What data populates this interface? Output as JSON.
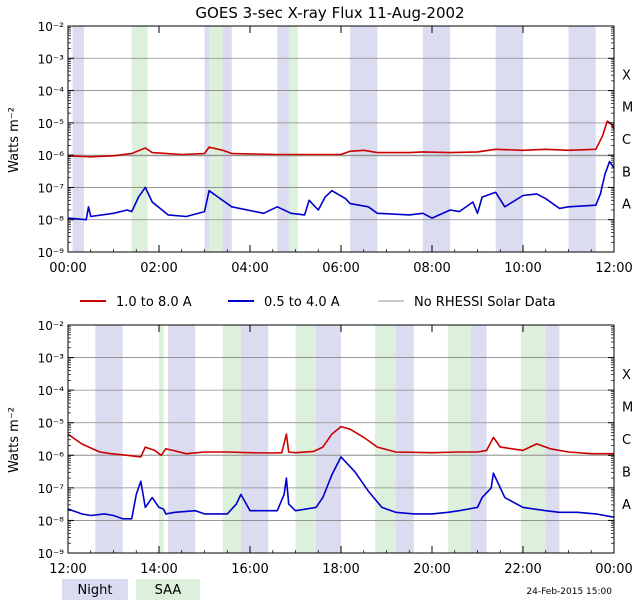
{
  "chart_data": [
    {
      "type": "line",
      "title": "GOES 3-sec X-ray Flux   11-Aug-2002",
      "ylabel": "Watts m⁻²",
      "x_unit": "hours",
      "xlim": [
        0,
        12
      ],
      "ylim_log10": [
        -9,
        -2
      ],
      "x_ticks": [
        {
          "value": 0,
          "label": "00:00"
        },
        {
          "value": 2,
          "label": "02:00"
        },
        {
          "value": 4,
          "label": "04:00"
        },
        {
          "value": 6,
          "label": "06:00"
        },
        {
          "value": 8,
          "label": "08:00"
        },
        {
          "value": 10,
          "label": "10:00"
        },
        {
          "value": 12,
          "label": "12:00"
        }
      ],
      "y_ticks": [
        {
          "exp": -2,
          "label": "10⁻²"
        },
        {
          "exp": -3,
          "label": "10⁻³"
        },
        {
          "exp": -4,
          "label": "10⁻⁴"
        },
        {
          "exp": -5,
          "label": "10⁻⁵"
        },
        {
          "exp": -6,
          "label": "10⁻⁶"
        },
        {
          "exp": -7,
          "label": "10⁻⁷"
        },
        {
          "exp": -8,
          "label": "10⁻⁸"
        },
        {
          "exp": -9,
          "label": "10⁻⁹"
        }
      ],
      "flare_classes": [
        {
          "label": "X",
          "exp": -3.5
        },
        {
          "label": "M",
          "exp": -4.5
        },
        {
          "label": "C",
          "exp": -5.5
        },
        {
          "label": "B",
          "exp": -6.5
        },
        {
          "label": "A",
          "exp": -7.5
        }
      ],
      "night_bands": [
        [
          0.1,
          0.35
        ],
        [
          3.0,
          3.6
        ],
        [
          4.6,
          4.9
        ],
        [
          6.2,
          6.8
        ],
        [
          7.8,
          8.4
        ],
        [
          9.4,
          10.0
        ],
        [
          11.0,
          11.6
        ]
      ],
      "saa_bands": [
        [
          1.4,
          1.75
        ],
        [
          3.1,
          3.4
        ],
        [
          4.85,
          5.05
        ]
      ],
      "series": [
        {
          "name": "1.0 to 8.0 A",
          "color": "#cc0000",
          "points": [
            [
              0,
              -6.02
            ],
            [
              0.5,
              -6.05
            ],
            [
              1.0,
              -6.02
            ],
            [
              1.4,
              -5.95
            ],
            [
              1.7,
              -5.78
            ],
            [
              1.85,
              -5.92
            ],
            [
              2.5,
              -5.98
            ],
            [
              3.0,
              -5.95
            ],
            [
              3.1,
              -5.75
            ],
            [
              3.4,
              -5.85
            ],
            [
              3.6,
              -5.95
            ],
            [
              4.6,
              -5.98
            ],
            [
              5.05,
              -5.98
            ],
            [
              6.0,
              -5.98
            ],
            [
              6.2,
              -5.88
            ],
            [
              6.5,
              -5.85
            ],
            [
              6.8,
              -5.92
            ],
            [
              7.5,
              -5.92
            ],
            [
              7.8,
              -5.9
            ],
            [
              8.4,
              -5.92
            ],
            [
              9.0,
              -5.9
            ],
            [
              9.4,
              -5.82
            ],
            [
              10.0,
              -5.85
            ],
            [
              10.5,
              -5.82
            ],
            [
              11.0,
              -5.85
            ],
            [
              11.6,
              -5.82
            ],
            [
              11.75,
              -5.4
            ],
            [
              11.85,
              -4.95
            ],
            [
              11.95,
              -5.05
            ],
            [
              12.0,
              -5.2
            ]
          ]
        },
        {
          "name": "0.5 to 4.0 A",
          "color": "#0000cc",
          "points": [
            [
              0,
              -7.95
            ],
            [
              0.4,
              -8.0
            ],
            [
              0.45,
              -7.6
            ],
            [
              0.5,
              -7.9
            ],
            [
              1.0,
              -7.8
            ],
            [
              1.3,
              -7.7
            ],
            [
              1.4,
              -7.75
            ],
            [
              1.55,
              -7.3
            ],
            [
              1.7,
              -7.0
            ],
            [
              1.85,
              -7.45
            ],
            [
              2.2,
              -7.85
            ],
            [
              2.6,
              -7.9
            ],
            [
              3.0,
              -7.75
            ],
            [
              3.1,
              -7.1
            ],
            [
              3.3,
              -7.3
            ],
            [
              3.6,
              -7.6
            ],
            [
              4.3,
              -7.8
            ],
            [
              4.6,
              -7.6
            ],
            [
              4.9,
              -7.8
            ],
            [
              5.2,
              -7.85
            ],
            [
              5.3,
              -7.4
            ],
            [
              5.5,
              -7.7
            ],
            [
              5.65,
              -7.3
            ],
            [
              5.8,
              -7.1
            ],
            [
              6.1,
              -7.35
            ],
            [
              6.2,
              -7.5
            ],
            [
              6.6,
              -7.6
            ],
            [
              6.8,
              -7.8
            ],
            [
              7.5,
              -7.85
            ],
            [
              7.8,
              -7.8
            ],
            [
              8.0,
              -7.95
            ],
            [
              8.4,
              -7.7
            ],
            [
              8.6,
              -7.75
            ],
            [
              8.9,
              -7.45
            ],
            [
              9.0,
              -7.8
            ],
            [
              9.1,
              -7.3
            ],
            [
              9.4,
              -7.15
            ],
            [
              9.6,
              -7.6
            ],
            [
              10.0,
              -7.25
            ],
            [
              10.3,
              -7.2
            ],
            [
              10.5,
              -7.35
            ],
            [
              10.8,
              -7.65
            ],
            [
              11.0,
              -7.6
            ],
            [
              11.6,
              -7.55
            ],
            [
              11.7,
              -7.2
            ],
            [
              11.8,
              -6.6
            ],
            [
              11.9,
              -6.2
            ],
            [
              12.0,
              -6.4
            ]
          ]
        },
        {
          "name": "No RHESSI Solar Data",
          "color": "#999999",
          "points": [
            [
              0,
              -6.02
            ],
            [
              12,
              -6.02
            ]
          ]
        }
      ]
    },
    {
      "type": "line",
      "ylabel": "Watts m⁻²",
      "x_unit": "hours",
      "xlim": [
        12,
        24
      ],
      "ylim_log10": [
        -9,
        -2
      ],
      "x_ticks": [
        {
          "value": 12,
          "label": "12:00"
        },
        {
          "value": 14,
          "label": "14:00"
        },
        {
          "value": 16,
          "label": "16:00"
        },
        {
          "value": 18,
          "label": "18:00"
        },
        {
          "value": 20,
          "label": "20:00"
        },
        {
          "value": 22,
          "label": "22:00"
        },
        {
          "value": 24,
          "label": "00:00"
        }
      ],
      "y_ticks": [
        {
          "exp": -2,
          "label": "10⁻²"
        },
        {
          "exp": -3,
          "label": "10⁻³"
        },
        {
          "exp": -4,
          "label": "10⁻⁴"
        },
        {
          "exp": -5,
          "label": "10⁻⁵"
        },
        {
          "exp": -6,
          "label": "10⁻⁶"
        },
        {
          "exp": -7,
          "label": "10⁻⁷"
        },
        {
          "exp": -8,
          "label": "10⁻⁸"
        },
        {
          "exp": -9,
          "label": "10⁻⁹"
        }
      ],
      "flare_classes": [
        {
          "label": "X",
          "exp": -3.5
        },
        {
          "label": "M",
          "exp": -4.5
        },
        {
          "label": "C",
          "exp": -5.5
        },
        {
          "label": "B",
          "exp": -6.5
        },
        {
          "label": "A",
          "exp": -7.5
        }
      ],
      "night_bands": [
        [
          12.6,
          13.2
        ],
        [
          14.2,
          14.8
        ],
        [
          15.8,
          16.4
        ],
        [
          17.4,
          18.0
        ],
        [
          19.0,
          19.6
        ],
        [
          20.6,
          21.2
        ],
        [
          22.2,
          22.8
        ]
      ],
      "saa_bands": [
        [
          14.0,
          14.1
        ],
        [
          15.4,
          15.8
        ],
        [
          17.0,
          17.45
        ],
        [
          18.75,
          19.2
        ],
        [
          20.35,
          20.85
        ],
        [
          21.95,
          22.5
        ]
      ],
      "series": [
        {
          "name": "1.0 to 8.0 A",
          "color": "#cc0000",
          "points": [
            [
              12,
              -5.35
            ],
            [
              12.3,
              -5.65
            ],
            [
              12.7,
              -5.9
            ],
            [
              12.95,
              -5.95
            ],
            [
              13.3,
              -6.0
            ],
            [
              13.6,
              -6.05
            ],
            [
              13.7,
              -5.75
            ],
            [
              13.9,
              -5.85
            ],
            [
              14.05,
              -6.0
            ],
            [
              14.15,
              -5.8
            ],
            [
              14.3,
              -5.85
            ],
            [
              14.6,
              -5.95
            ],
            [
              15.0,
              -5.9
            ],
            [
              15.5,
              -5.9
            ],
            [
              16.0,
              -5.92
            ],
            [
              16.5,
              -5.93
            ],
            [
              16.7,
              -5.92
            ],
            [
              16.8,
              -5.35
            ],
            [
              16.85,
              -5.9
            ],
            [
              17.0,
              -5.92
            ],
            [
              17.4,
              -5.88
            ],
            [
              17.6,
              -5.75
            ],
            [
              17.8,
              -5.35
            ],
            [
              18.0,
              -5.12
            ],
            [
              18.2,
              -5.2
            ],
            [
              18.5,
              -5.45
            ],
            [
              18.8,
              -5.75
            ],
            [
              19.2,
              -5.9
            ],
            [
              20.0,
              -5.92
            ],
            [
              20.6,
              -5.9
            ],
            [
              21.0,
              -5.9
            ],
            [
              21.2,
              -5.85
            ],
            [
              21.35,
              -5.45
            ],
            [
              21.5,
              -5.75
            ],
            [
              22.0,
              -5.85
            ],
            [
              22.3,
              -5.65
            ],
            [
              22.6,
              -5.8
            ],
            [
              23.0,
              -5.9
            ],
            [
              23.5,
              -5.95
            ],
            [
              24.0,
              -5.95
            ]
          ]
        },
        {
          "name": "0.5 to 4.0 A",
          "color": "#0000cc",
          "points": [
            [
              12,
              -7.65
            ],
            [
              12.3,
              -7.8
            ],
            [
              12.5,
              -7.85
            ],
            [
              12.8,
              -7.8
            ],
            [
              13.0,
              -7.85
            ],
            [
              13.2,
              -7.95
            ],
            [
              13.4,
              -7.95
            ],
            [
              13.5,
              -7.2
            ],
            [
              13.6,
              -6.8
            ],
            [
              13.7,
              -7.6
            ],
            [
              13.85,
              -7.3
            ],
            [
              14.0,
              -7.6
            ],
            [
              14.1,
              -7.65
            ],
            [
              14.15,
              -7.8
            ],
            [
              14.35,
              -7.75
            ],
            [
              14.8,
              -7.7
            ],
            [
              15.0,
              -7.8
            ],
            [
              15.5,
              -7.8
            ],
            [
              15.7,
              -7.5
            ],
            [
              15.8,
              -7.2
            ],
            [
              16.0,
              -7.7
            ],
            [
              16.3,
              -7.7
            ],
            [
              16.6,
              -7.7
            ],
            [
              16.75,
              -7.2
            ],
            [
              16.8,
              -6.7
            ],
            [
              16.85,
              -7.5
            ],
            [
              17.0,
              -7.7
            ],
            [
              17.45,
              -7.6
            ],
            [
              17.6,
              -7.3
            ],
            [
              17.8,
              -6.6
            ],
            [
              18.0,
              -6.05
            ],
            [
              18.3,
              -6.5
            ],
            [
              18.6,
              -7.1
            ],
            [
              18.9,
              -7.6
            ],
            [
              19.2,
              -7.75
            ],
            [
              19.6,
              -7.8
            ],
            [
              20.0,
              -7.8
            ],
            [
              20.35,
              -7.75
            ],
            [
              20.6,
              -7.7
            ],
            [
              21.0,
              -7.6
            ],
            [
              21.1,
              -7.3
            ],
            [
              21.3,
              -7.0
            ],
            [
              21.35,
              -6.55
            ],
            [
              21.5,
              -7.0
            ],
            [
              21.6,
              -7.3
            ],
            [
              22.0,
              -7.6
            ],
            [
              22.5,
              -7.7
            ],
            [
              22.8,
              -7.75
            ],
            [
              23.2,
              -7.75
            ],
            [
              23.6,
              -7.8
            ],
            [
              24.0,
              -7.9
            ]
          ]
        },
        {
          "name": "No RHESSI Solar Data",
          "color": "#999999",
          "points": [
            [
              12,
              -6.0
            ],
            [
              24,
              -6.0
            ]
          ]
        }
      ]
    }
  ],
  "legend": [
    {
      "label": "1.0 to 8.0 A",
      "color": "#cc0000"
    },
    {
      "label": "0.5 to 4.0 A",
      "color": "#0000cc"
    },
    {
      "label": "No RHESSI Solar Data",
      "color": "#999999"
    }
  ],
  "band_legend": [
    {
      "label": "Night",
      "color": "#dcdcf0"
    },
    {
      "label": "SAA",
      "color": "#dcf0dc"
    }
  ],
  "footer_timestamp": "24-Feb-2015 15:00"
}
